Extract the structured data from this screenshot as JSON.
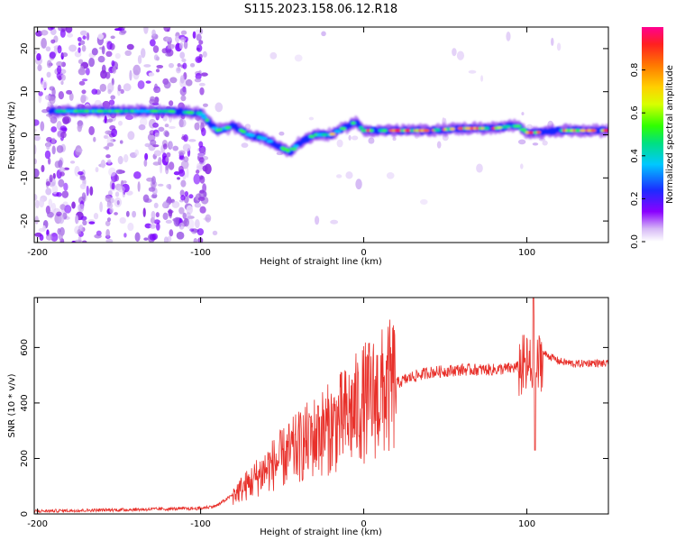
{
  "title": "S115.2023.158.06.12.R18",
  "chart_data": [
    {
      "type": "heatmap",
      "xlabel": "Height of straight line (km)",
      "ylabel": "Frequency (Hz)",
      "xlim": [
        -202,
        150
      ],
      "ylim": [
        -25,
        25
      ],
      "xticks": [
        -200,
        -100,
        0,
        100
      ],
      "yticks": [
        -20,
        -10,
        0,
        10,
        20
      ],
      "ridge": {
        "x": [
          -192,
          -180,
          -160,
          -140,
          -120,
          -100,
          -90,
          -80,
          -70,
          -60,
          -50,
          -45,
          -40,
          -30,
          -20,
          -10,
          -5,
          0,
          20,
          40,
          60,
          80,
          90,
          95,
          100,
          105,
          120,
          150
        ],
        "y": [
          5.5,
          5.5,
          5.5,
          5.5,
          5.5,
          5,
          1,
          2,
          0,
          -1,
          -3,
          -4,
          -2,
          0,
          0,
          2,
          3,
          1,
          1,
          1,
          1.5,
          1.5,
          2,
          2,
          0.5,
          0.5,
          1,
          1
        ]
      },
      "noise_region_x": [
        -202,
        -95
      ]
    },
    {
      "type": "line",
      "xlabel": "Height of straight line (km)",
      "ylabel": "SNR (10 * v/v)",
      "xlim": [
        -202,
        150
      ],
      "ylim": [
        0,
        780
      ],
      "xticks": [
        -200,
        -100,
        0,
        100
      ],
      "yticks": [
        0,
        200,
        400,
        600
      ],
      "color": "#e8302a",
      "envelope": {
        "x": [
          -202,
          -150,
          -100,
          -90,
          -80,
          -70,
          -60,
          -50,
          -40,
          -30,
          -20,
          -10,
          0,
          10,
          20,
          30,
          40,
          60,
          80,
          90,
          95,
          100,
          103,
          105,
          110,
          120,
          130,
          140,
          150
        ],
        "y": [
          10,
          15,
          20,
          30,
          70,
          110,
          160,
          200,
          240,
          280,
          310,
          350,
          400,
          430,
          470,
          495,
          510,
          520,
          520,
          525,
          530,
          530,
          520,
          500,
          580,
          550,
          540,
          545,
          540
        ]
      },
      "spikes": [
        {
          "x": -33,
          "y": 350
        },
        {
          "x": -28,
          "y": 390
        },
        {
          "x": 104,
          "y": 780
        },
        {
          "x": 105,
          "y": 230
        }
      ]
    }
  ],
  "colorbar": {
    "label": "Normalized spectral amplitude",
    "ticks": [
      0.0,
      0.2,
      0.4,
      0.6,
      0.8
    ],
    "tick_labels": [
      "0.0",
      "0.2",
      "0.4",
      "0.6",
      "0.8"
    ],
    "colors": [
      "#ffffff",
      "#c8a0f0",
      "#8800ff",
      "#2020ff",
      "#00c8ff",
      "#00e070",
      "#30ff00",
      "#d0ff00",
      "#ffd000",
      "#ff8000",
      "#ff2020",
      "#ff0080"
    ]
  }
}
